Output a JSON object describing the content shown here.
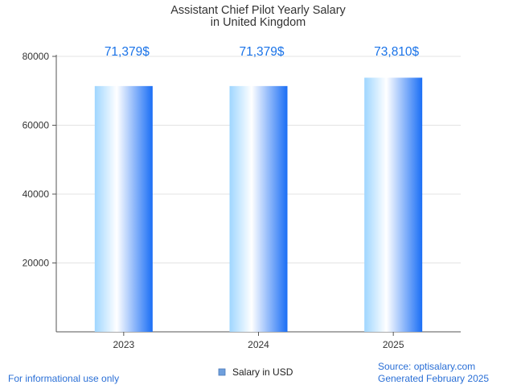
{
  "chart_data": {
    "type": "bar",
    "title": [
      "Assistant Chief Pilot Yearly Salary",
      "in United Kingdom"
    ],
    "categories": [
      "2023",
      "2024",
      "2025"
    ],
    "series": [
      {
        "name": "Salary in USD",
        "values": [
          71379,
          71379,
          73810
        ]
      }
    ],
    "data_labels": [
      "71,379$",
      "71,379$",
      "73,810$"
    ],
    "ylim": [
      0,
      80000
    ],
    "yticks": [
      20000,
      40000,
      60000,
      80000
    ],
    "ytick_labels": [
      "20000",
      "40000",
      "60000",
      "80000"
    ],
    "xlabel": "",
    "ylabel": "",
    "grid": true,
    "legend": "bottom-center"
  },
  "footer": {
    "left": "For informational use only",
    "source": "Source: optisalary.com",
    "generated": "Generated February 2025"
  },
  "colors": {
    "bar_light": "#9fd6ff",
    "bar_dark": "#1a6ef5",
    "label": "#1a73e8",
    "grid": "#e3e3e3",
    "axis": "#555555",
    "legend_swatch": "#6f9fdc"
  }
}
